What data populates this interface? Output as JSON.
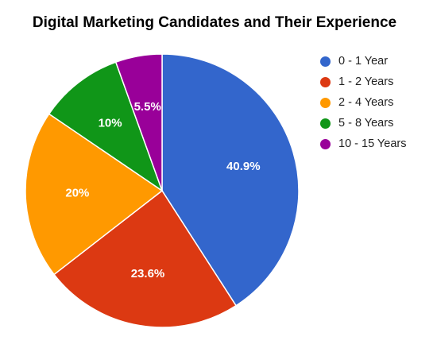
{
  "chart_data": {
    "type": "pie",
    "title": "Digital Marketing Candidates and Their Experience",
    "categories": [
      "0 - 1 Year",
      "1 - 2 Years",
      "2 - 4 Years",
      "5 - 8 Years",
      "10 - 15 Years"
    ],
    "values": [
      40.9,
      23.6,
      20,
      10,
      5.5
    ],
    "value_labels": [
      "40.9%",
      "23.6%",
      "20%",
      "10%",
      "5.5%"
    ],
    "colors": [
      "#3366CC",
      "#DC3912",
      "#FF9900",
      "#109618",
      "#990099"
    ],
    "legend_position": "right",
    "start_angle": "top, clockwise"
  }
}
